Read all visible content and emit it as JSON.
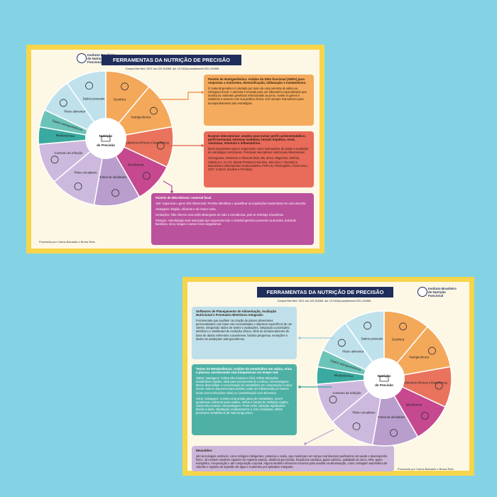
{
  "cards": [
    {
      "logo": "Instituto Brasileiro de Nutrição Funcional",
      "title": "FERRAMENTAS DA NUTRIÇÃO DE PRECISÃO",
      "citation": "Comput Biol Med. 2021 Jun;133:104365. doi: 10.1016/j.compbiomed.2021.104365.",
      "center": "Nutrição de Precisão",
      "segments": [
        "Genética",
        "Nutrigenômica",
        "Parâmetros clínicos e bioquímicos",
        "Microbioma",
        "Rotina de atividades",
        "Ritmo circadiano",
        "Contexto da refeição",
        "Metabolômica",
        "Dados antropométricos",
        "Plano alimentar",
        "Dados pessoais"
      ],
      "boxes": [
        {
          "title": "Painéis de Nutrigenômica: Análise do DNA funcional (SNPs) para respostas a nutrientes, destoxificação, inflamação e metabolismo.",
          "body": [
            "O material genético é coletado por meio de uma amostra de saliva ou esfregaço bucal. A amostra é enviada para um laboratório especializado que analisa as variantes genéticas relacionadas ao peso. Avalie os genes e relatórios e associe com sua prática clínica. Crie sempre marcadores para acompanhamento das estratégias."
          ]
        },
        {
          "title": "Exames laboratoriais: amplos para incluir perfil cardiometabólico, perfil hormonal, estresse oxidativo, função hepática, renal, vitaminas, minerais e inflamatórios.",
          "body": [
            "Muito importantes para o seguimento como marcadores de saúde e avaliação de estratégias nutricionais. Principais marcadores nutricionais laboratoriais:",
            "Hemograma, Vitaminas e Minerais (B12, B6, Zinco, Magnésio, Selênio, Vitamina A, D e E), Metais Pesados (Alumínio, Mercúrio e Chumbo) e Marcadores Inflamatórios (Homocisteína, PCR-US, Fibrinogênio, Ácido Úrico, GGT, Cortisol, Insulina e Ferritina)."
          ]
        },
        {
          "title": "Painéis de Microbioma: material fecal",
          "body": [
            "16S: sequencia o gene 16S ribossomal. Permite identificar e quantificar as populações bacterianas em uma amostra",
            "Vantagens: Rápido, eficiente e de menor custo.",
            "Limitações: Não oferece uma visão abrangente de todo o microbioma, pois se restringe a bactérias.",
            "Shotgun: metodologia mais avançada que sequencia todo o material genético presente na amostra, incluindo bactérias, vírus, fungos e outros micro-organismos."
          ]
        }
      ],
      "footer": "Produzido por Carlos Baiuaido e Bruna Reis."
    },
    {
      "logo": "Instituto Brasileiro de Nutrição Funcional",
      "title": "FERRAMENTAS DA NUTRIÇÃO DE PRECISÃO",
      "citation": "Comput Biol Med. 2021 Jun;133:104365. doi: 10.1016/j.compbiomed.2021.104365.",
      "center": "Nutrição de Precisão",
      "segments": [
        "Genética",
        "Nutrigenômica",
        "Parâmetros clínicos e bioquímicos",
        "Microbioma",
        "Rotina de atividades",
        "Ritmo circadiano",
        "Contexto da refeição",
        "Metabolômica",
        "Dados antropométricos",
        "Plano alimentar",
        "Dados pessoais"
      ],
      "boxes": [
        {
          "title": "Softwares de Planejamento de Alimentação, Avaliação Nutricional e Prontuário Eletrônico Integrado:",
          "body": [
            "Ferramentas que auxiliam na criação de planos alimentares personalizados com base nas necessidades e objetivos específicos de um cliente, integrando dados de testes e avaliações, integração a prontuário eletrônico e dashboard de evolução clínica. Além do armazenamento de base de dados referentes a anamnese, história pregressa, evoluções e dados de avaliações antropométricas."
          ]
        },
        {
          "title": "Testes de Metabolômica: Análise de metabólitos em saliva, urina e plasma, monitorando vias bioquímicas em tempo real",
          "body": [
            "Saliva: Vantagens: Coleta não invasiva e fácil, reflete alterações metabólicas rápidas, ideal para monitoramento contínuo. Desvantagens: Menor diversidade e concentração de metabólitos em comparação à urina; menor volume disponível para análise; pode ser influenciada por fatores locais (como infecções orais) ou contaminação com alimentos.",
            "Urina: Vantagens: Contém uma ampla gama de metabólitos, ocorre geralmente suficiente para análise, reflete a função de múltiplos órgãos, coleta não invasiva. Desvantagens: Pode sofrer variação significativa devido à dieta, hidratação, medicamentos e ciclo circadiano; reflete processos metabólicos de mais longo prazo."
          ]
        },
        {
          "title": "Wearables:",
          "body": [
            "são tecnologias vestíveis, como relógios inteligentes, pulseiras e anéis, que monitoram em tempo real diversos parâmetros de saúde e desempenho físico. Já existem modelos capazes de registrar passos, distância percorrida, frequência cardíaca, gasto calórico, qualidade do sono, HRV, gasto energético, recuperação e até composição corporal. Alguns também oferecem recursos para auxiliar na alimentação, como contagem automática de calorias e registro de ingestão de água e nutrientes por aplicativo integrado."
          ]
        }
      ],
      "footer": "Produzido por Carlos Baiuaido e Bruna Reis."
    }
  ]
}
